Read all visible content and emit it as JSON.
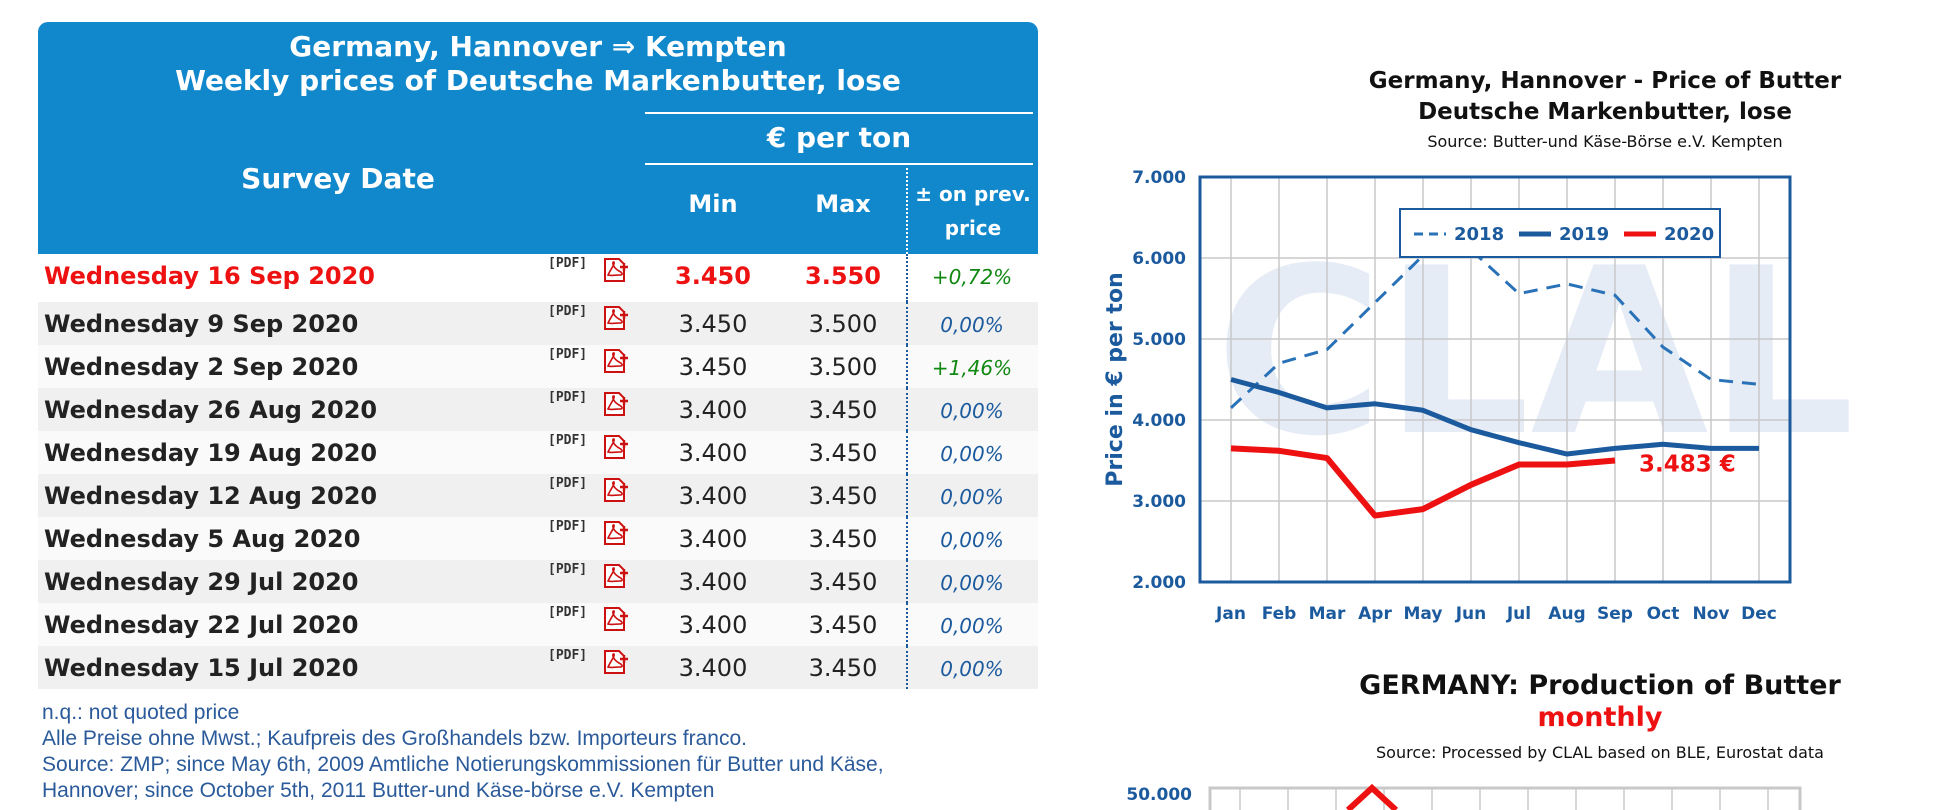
{
  "table": {
    "title_line1": "Germany, Hannover ⇒ Kempten",
    "title_line2": "Weekly prices of Deutsche Markenbutter, lose",
    "col_survey": "Survey Date",
    "col_unit": "€ per ton",
    "col_min": "Min",
    "col_max": "Max",
    "col_prev_line1": "± on prev.",
    "col_prev_line2": "price",
    "pdf_label": "[PDF]",
    "rows": [
      {
        "date": "Wednesday 16 Sep 2020",
        "min": "3.450",
        "max": "3.550",
        "var": "+0,72%"
      },
      {
        "date": "Wednesday 9 Sep 2020",
        "min": "3.450",
        "max": "3.500",
        "var": "0,00%"
      },
      {
        "date": "Wednesday 2 Sep 2020",
        "min": "3.450",
        "max": "3.500",
        "var": "+1,46%"
      },
      {
        "date": "Wednesday 26 Aug 2020",
        "min": "3.400",
        "max": "3.450",
        "var": "0,00%"
      },
      {
        "date": "Wednesday 19 Aug 2020",
        "min": "3.400",
        "max": "3.450",
        "var": "0,00%"
      },
      {
        "date": "Wednesday 12 Aug 2020",
        "min": "3.400",
        "max": "3.450",
        "var": "0,00%"
      },
      {
        "date": "Wednesday 5 Aug 2020",
        "min": "3.400",
        "max": "3.450",
        "var": "0,00%"
      },
      {
        "date": "Wednesday 29 Jul 2020",
        "min": "3.400",
        "max": "3.450",
        "var": "0,00%"
      },
      {
        "date": "Wednesday 22 Jul 2020",
        "min": "3.400",
        "max": "3.450",
        "var": "0,00%"
      },
      {
        "date": "Wednesday 15 Jul 2020",
        "min": "3.400",
        "max": "3.450",
        "var": "0,00%"
      }
    ],
    "notes": [
      "n.q.: not quoted price",
      "Alle Preise ohne Mwst.; Kaufpreis des Großhandels bzw. Importeurs franco.",
      "Source: ZMP; since May 6th, 2009 Amtliche Notierungskommissionen für Butter und Käse,",
      "Hannover; since October 5th, 2011 Butter-und Käse-börse e.V. Kempten"
    ]
  },
  "colors": {
    "header_bg": "#1188cc",
    "highlight_red": "#ee1111",
    "chart_blue": "#1c5a9e",
    "positive_green": "#118811"
  },
  "chart_data": [
    {
      "type": "line",
      "title_line1": "Germany, Hannover - Price of Butter",
      "title_line2": "Deutsche Markenbutter, lose",
      "source": "Source: Butter-und Käse-Börse e.V. Kempten",
      "ylabel": "Price in € per ton",
      "ylim": [
        2000,
        7000
      ],
      "yticks": [
        "2.000",
        "3.000",
        "4.000",
        "5.000",
        "6.000",
        "7.000"
      ],
      "categories": [
        "Jan",
        "Feb",
        "Mar",
        "Apr",
        "May",
        "Jun",
        "Jul",
        "Aug",
        "Sep",
        "Oct",
        "Nov",
        "Dec"
      ],
      "grid": true,
      "legend": "top-center",
      "watermark": "CLAL",
      "series": [
        {
          "name": "2018",
          "style": "dashed",
          "color": "#2a72b8",
          "values": [
            4150,
            4700,
            4870,
            5450,
            6030,
            6100,
            5560,
            5680,
            5540,
            4900,
            4500,
            4440
          ]
        },
        {
          "name": "2019",
          "style": "solid",
          "color": "#1c5a9e",
          "values": [
            4500,
            4340,
            4150,
            4200,
            4120,
            3880,
            3720,
            3580,
            3650,
            3700,
            3650,
            3650
          ]
        },
        {
          "name": "2020",
          "style": "solid",
          "color": "#ee1111",
          "values": [
            3650,
            3620,
            3530,
            2820,
            2900,
            3200,
            3450,
            3450,
            3500,
            null,
            null,
            null
          ]
        }
      ],
      "annotation": "3.483 €"
    },
    {
      "type": "line",
      "title": "GERMANY: Production of Butter",
      "subtitle": "monthly",
      "source": "Source: Processed by CLAL based on BLE, Eurostat data",
      "yticks": [
        "50.000"
      ],
      "series": []
    }
  ]
}
